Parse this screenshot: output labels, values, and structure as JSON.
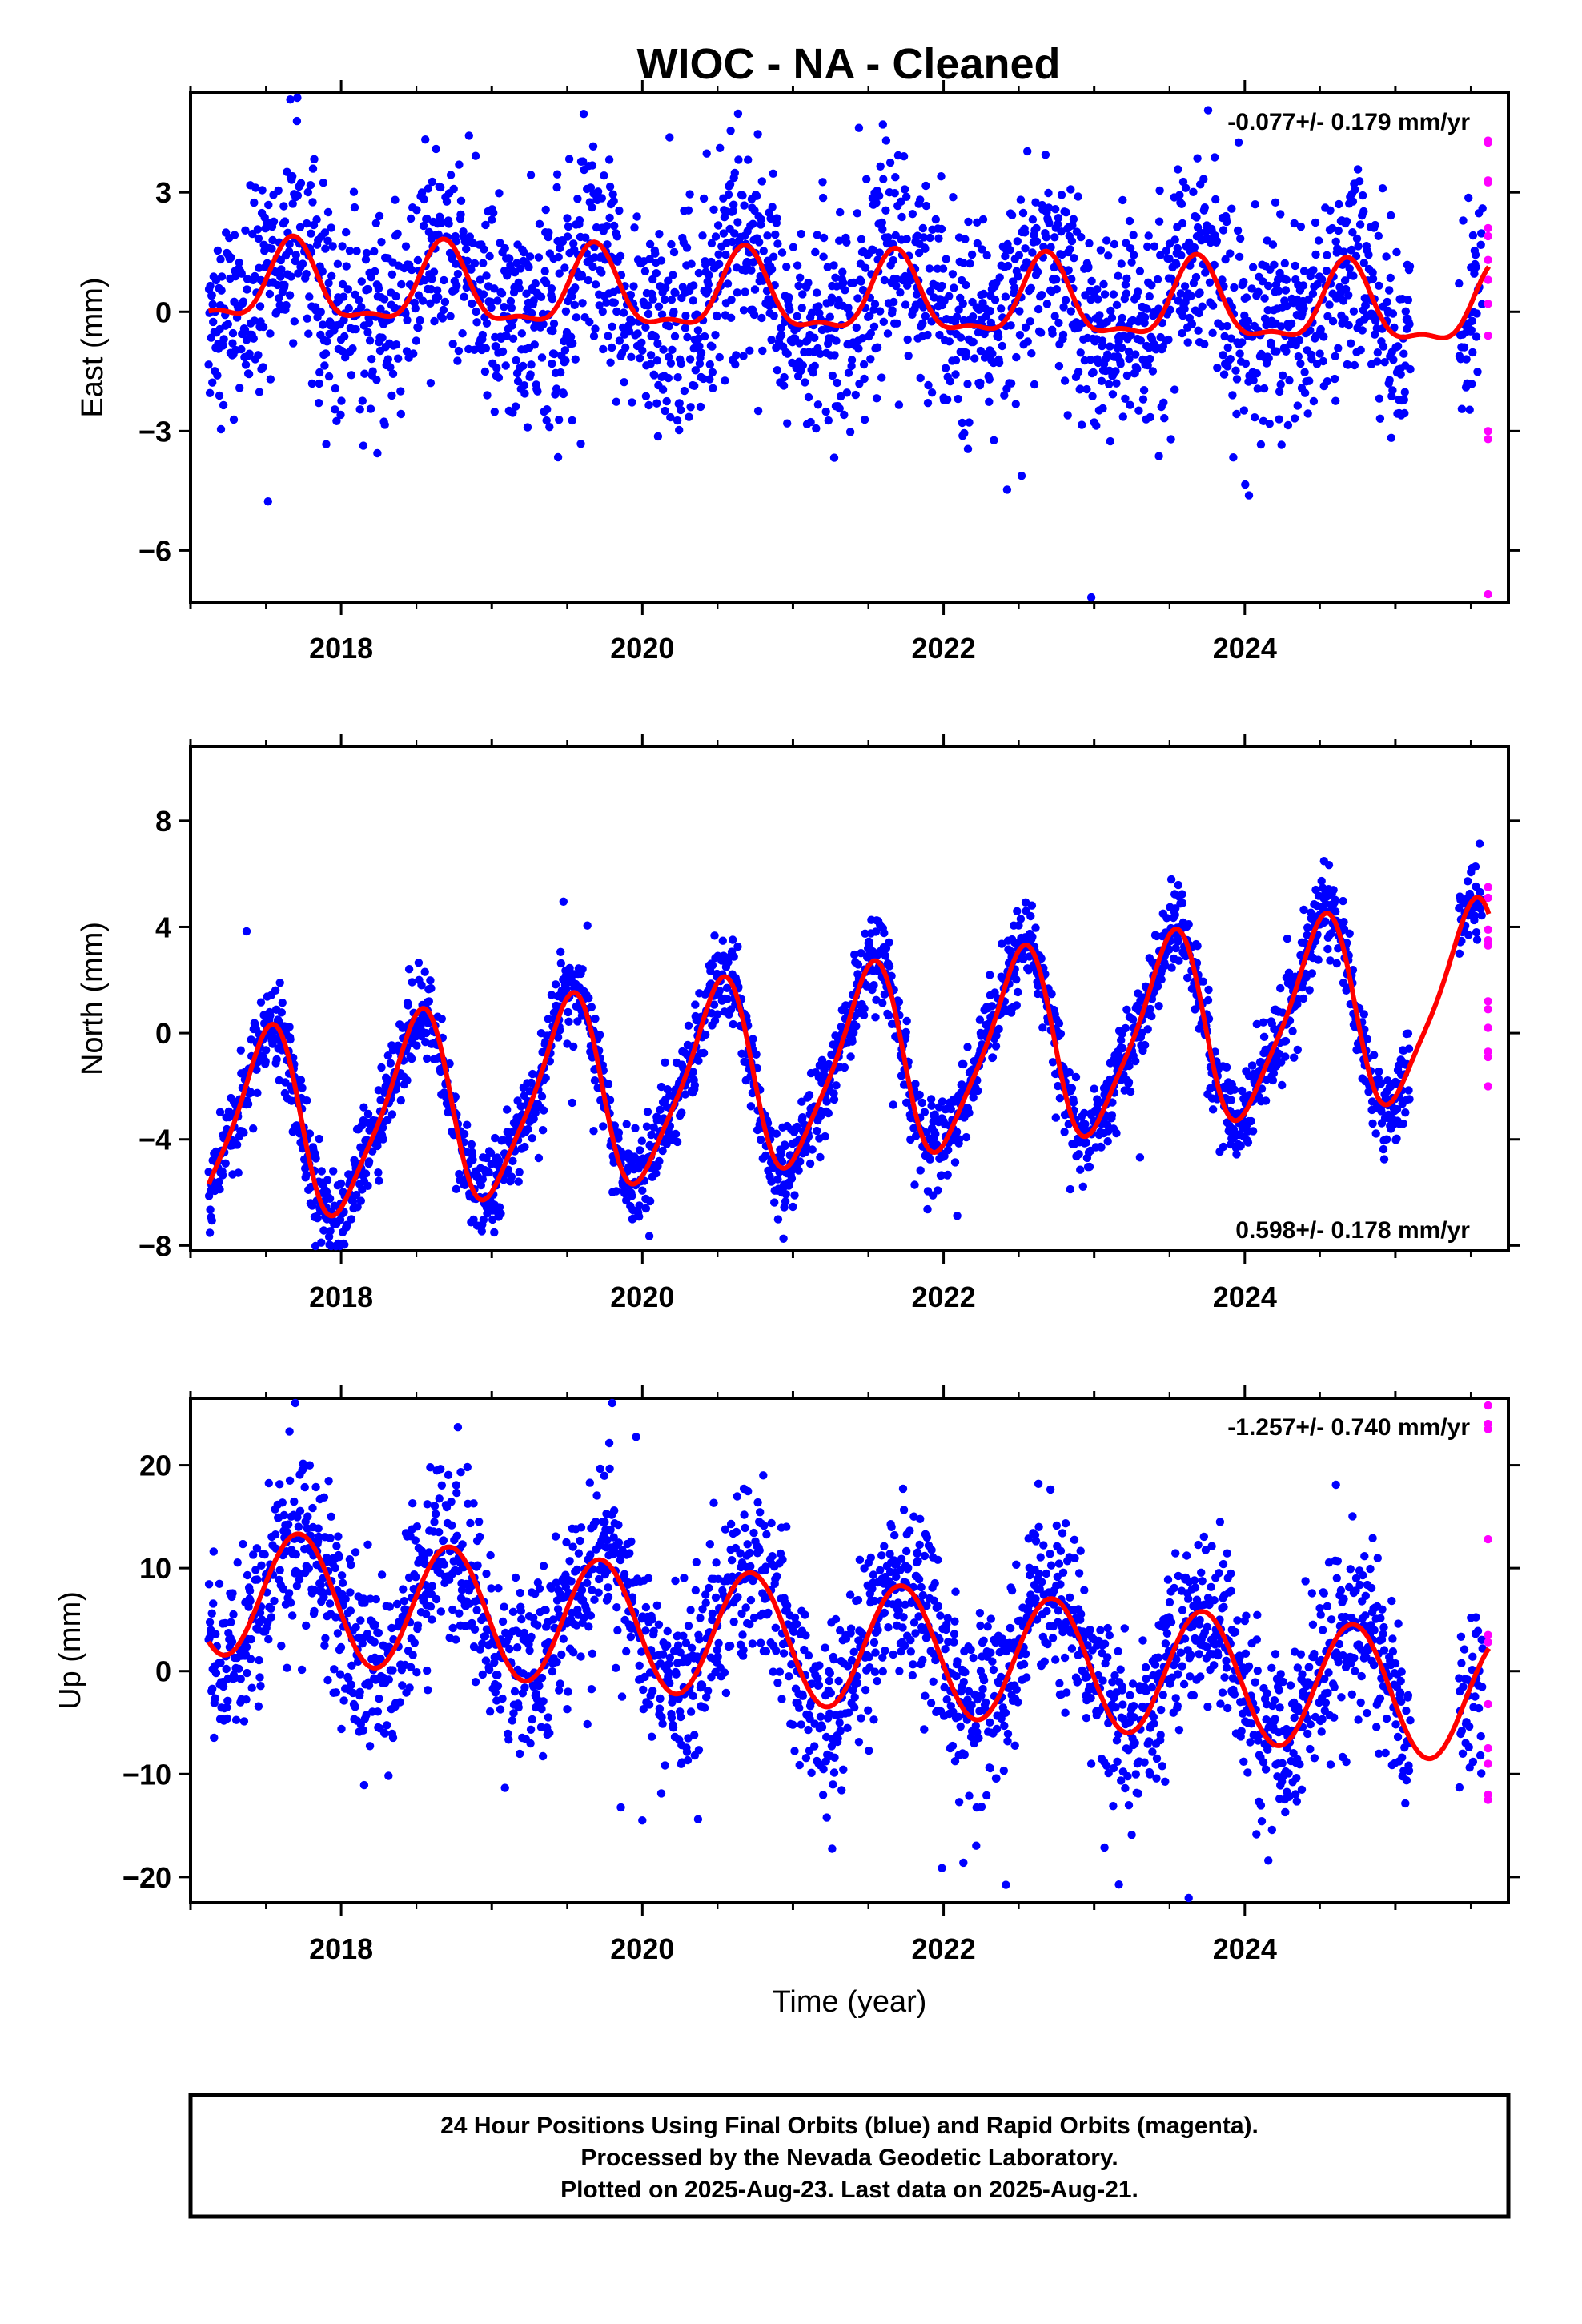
{
  "chart_data": {
    "type": "scatter",
    "title": "WIOC  - NA - Cleaned",
    "xlabel": "Time (year)",
    "x_ticks": [
      2018,
      2020,
      2022,
      2024
    ],
    "xlim": [
      2017.0,
      2025.75
    ],
    "series_colors": {
      "final_orbits": "#0000ff",
      "rapid_orbits": "#ff00ff",
      "model_fit": "#ff0000"
    },
    "panels": [
      {
        "id": "east",
        "ylabel": "East (mm)",
        "ylim": [
          -7.3,
          5.5
        ],
        "y_ticks": [
          -6,
          -3,
          0,
          3
        ],
        "rate": "-0.077+/- 0.179 mm/yr",
        "rate_position": "top-right",
        "model": {
          "offset": 0.35,
          "trend": -0.077,
          "annual_amp": 0.95,
          "annual_peak": 0.68,
          "semiannual_amp": 0.35,
          "semiannual_peak": 0.68
        },
        "scatter_sd": 1.3,
        "rapid_values": [
          4.3,
          4.25,
          3.3,
          3.25,
          2.1,
          1.9,
          1.3,
          0.8,
          0.2,
          -0.6,
          -3.0,
          -3.2,
          -7.1
        ]
      },
      {
        "id": "north",
        "ylabel": "North (mm)",
        "ylim": [
          -8.2,
          10.8
        ],
        "y_ticks": [
          -8,
          -4,
          0,
          4,
          8
        ],
        "rate": "0.598+/- 0.178 mm/yr",
        "rate_position": "bottom-right",
        "model": {
          "offset": -1.5,
          "trend": 0.598,
          "annual_amp": 3.5,
          "annual_peak": 0.5,
          "semiannual_amp": 0.7,
          "semiannual_peak": 0.6
        },
        "scatter_sd": 0.8,
        "rapid_values": [
          5.5,
          5.1,
          3.9,
          3.5,
          3.3,
          1.2,
          0.9,
          0.2,
          -0.7,
          -0.9,
          -2.0
        ]
      },
      {
        "id": "up",
        "ylabel": "Up (mm)",
        "ylim": [
          -22.5,
          26.5
        ],
        "y_ticks": [
          -20,
          -10,
          0,
          10,
          20
        ],
        "rate": "-1.257+/- 0.740 mm/yr",
        "rate_position": "top-right",
        "model": {
          "offset": 3.0,
          "trend": -1.257,
          "annual_amp": 6.2,
          "annual_peak": 0.72,
          "semiannual_amp": 0.0,
          "semiannual_peak": 0.5
        },
        "scatter_sd": 4.2,
        "rapid_values": [
          25.8,
          24.0,
          23.5,
          12.8,
          3.5,
          2.8,
          -3.2,
          -7.5,
          -9.0,
          -12.0,
          -12.5
        ]
      }
    ]
  },
  "footer": {
    "line1": "24 Hour Positions Using Final Orbits (blue) and Rapid Orbits (magenta).",
    "line2": "Processed by the Nevada Geodetic Laboratory.",
    "line3": "Plotted on 2025-Aug-23. Last data on 2025-Aug-21."
  }
}
